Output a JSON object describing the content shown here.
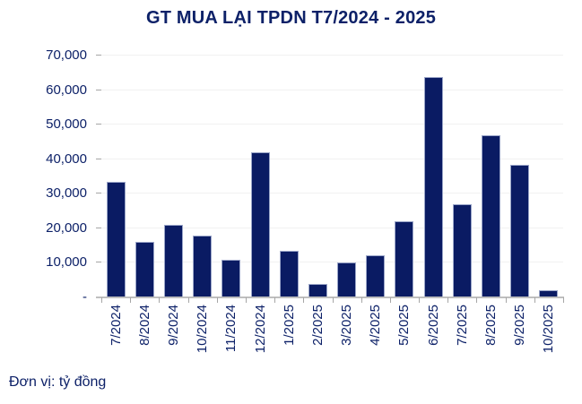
{
  "title": "GT MUA LẠI TPDN T7/2024 - 2025",
  "unit_note": "Đơn vị: tỷ đồng",
  "colors": {
    "bar_fill": "#0a1b63",
    "text_navy": "#0d2168",
    "gridline": "#f1f1f1",
    "axis_line": "#bfbfbf"
  },
  "chart_data": {
    "type": "bar",
    "title": "GT MUA LẠI TPDN T7/2024 - 2025",
    "categories": [
      "7/2024",
      "8/2024",
      "9/2024",
      "10/2024",
      "11/2024",
      "12/2024",
      "1/2025",
      "2/2025",
      "3/2025",
      "4/2025",
      "5/2025",
      "6/2025",
      "7/2025",
      "8/2025",
      "9/2025",
      "10/2025"
    ],
    "values": [
      33500,
      16000,
      21000,
      17800,
      11000,
      42000,
      13500,
      4000,
      10200,
      12200,
      22000,
      63700,
      27000,
      47000,
      38300,
      2000
    ],
    "xlabel": "",
    "ylabel": "",
    "unit_note": "Đơn vị: tỷ đồng",
    "ylim": [
      0,
      70000
    ],
    "ytick_step": 10000,
    "ytick_labels": [
      "-",
      "10,000",
      "20,000",
      "30,000",
      "40,000",
      "50,000",
      "60,000",
      "70,000"
    ],
    "grid": true,
    "legend": false,
    "x_tick_marks": "between-categories",
    "x_label_rotation_deg": 90
  }
}
